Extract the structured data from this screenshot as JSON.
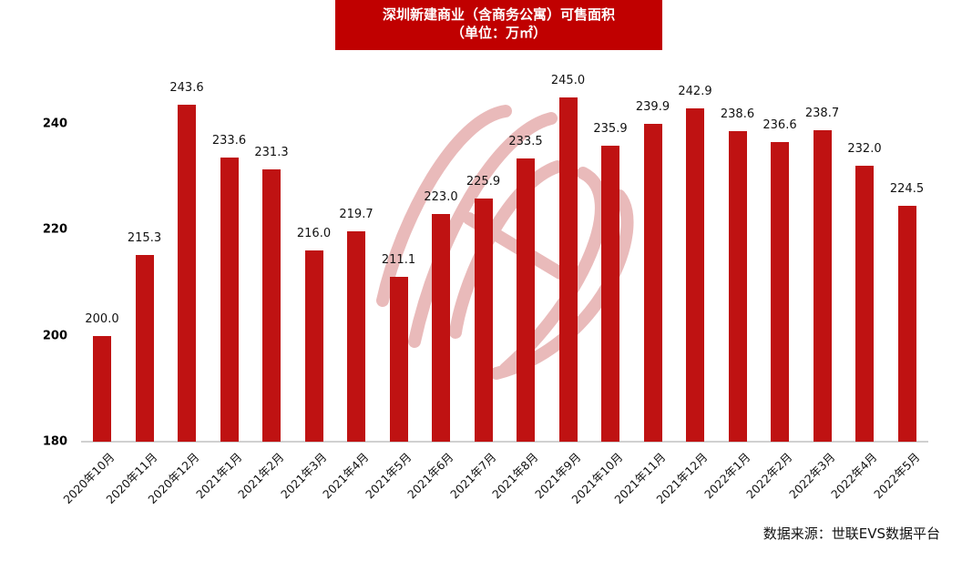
{
  "header": {
    "title_line1": "深圳新建商业（含商务公寓）可售面积",
    "title_line2": "（单位：万㎡）"
  },
  "footer": {
    "source": "数据来源：世联EVS数据平台"
  },
  "colors": {
    "bar": "#bf1212",
    "title_bg": "#c00000",
    "watermark": "#e7b3b3",
    "axis": "#d0d0d0"
  },
  "chart_data": {
    "type": "bar",
    "title": "深圳新建商业（含商务公寓）可售面积（单位：万㎡）",
    "xlabel": "",
    "ylabel": "",
    "ylim": [
      180,
      250
    ],
    "yticks": [
      180,
      200,
      220,
      240
    ],
    "grid": false,
    "legend": null,
    "categories": [
      "2020年10月",
      "2020年11月",
      "2020年12月",
      "2021年1月",
      "2021年2月",
      "2021年3月",
      "2021年4月",
      "2021年5月",
      "2021年6月",
      "2021年7月",
      "2021年8月",
      "2021年9月",
      "2021年10月",
      "2021年11月",
      "2021年12月",
      "2022年1月",
      "2022年2月",
      "2022年3月",
      "2022年4月",
      "2022年5月"
    ],
    "values": [
      200.0,
      215.3,
      243.6,
      233.6,
      231.3,
      216.0,
      219.7,
      211.1,
      223.0,
      225.9,
      233.5,
      245.0,
      235.9,
      239.9,
      242.9,
      238.6,
      236.6,
      238.7,
      232.0,
      224.5
    ],
    "value_labels": [
      "200.0",
      "215.3",
      "243.6",
      "233.6",
      "231.3",
      "216.0",
      "219.7",
      "211.1",
      "223.0",
      "225.9",
      "233.5",
      "245.0",
      "235.9",
      "239.9",
      "242.9",
      "238.6",
      "236.6",
      "238.7",
      "232.0",
      "224.5"
    ],
    "annotations": [
      "数据来源：世联EVS数据平台"
    ]
  }
}
